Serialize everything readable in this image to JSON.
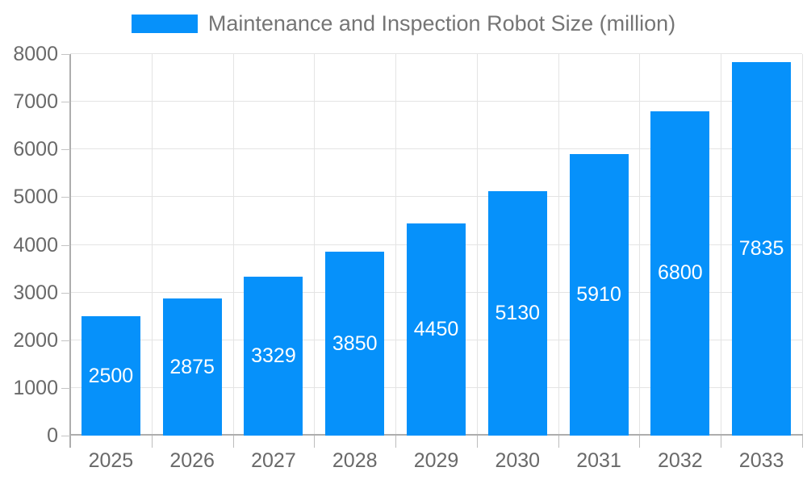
{
  "legend": {
    "label": "Maintenance and Inspection Robot Size (million)"
  },
  "colors": {
    "bar": "#0691FA",
    "bar_label": "#FFFFFF",
    "grid": "#E4E4E4",
    "axis": "#ADADAD",
    "tick": "#C4C4C4",
    "tick_label": "#696969",
    "legend_text": "#757575",
    "background": "#FFFFFF"
  },
  "chart_data": {
    "type": "bar",
    "title": "Maintenance and Inspection Robot Size (million)",
    "categories": [
      "2025",
      "2026",
      "2027",
      "2028",
      "2029",
      "2030",
      "2031",
      "2032",
      "2033"
    ],
    "series": [
      {
        "name": "Maintenance and Inspection Robot Size (million)",
        "values": [
          2500,
          2875,
          3329,
          3850,
          4450,
          5130,
          5910,
          6800,
          7835
        ]
      }
    ],
    "bar_value_labels": [
      "2500",
      "2875",
      "3329",
      "3850",
      "4450",
      "5130",
      "5910",
      "6800",
      "7835"
    ],
    "xlabel": "",
    "ylabel": "",
    "ylim": [
      0,
      8000
    ],
    "yticks": [
      0,
      1000,
      2000,
      3000,
      4000,
      5000,
      6000,
      7000,
      8000
    ],
    "grid": true,
    "legend_position": "top-center",
    "value_label_position": "inside-center"
  }
}
